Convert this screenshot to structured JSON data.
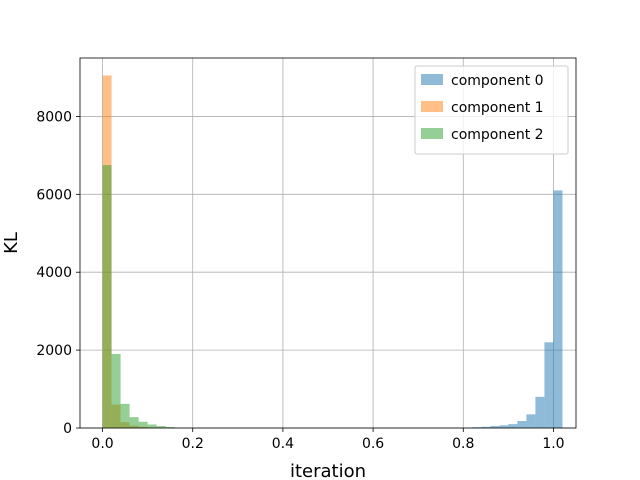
{
  "chart_data": {
    "type": "histogram",
    "title": "",
    "xlabel": "iteration",
    "ylabel": "KL",
    "xlim": [
      -0.05,
      1.05
    ],
    "ylim": [
      0,
      9500
    ],
    "xticks": [
      0.0,
      0.2,
      0.4,
      0.6,
      0.8,
      1.0
    ],
    "xtick_labels": [
      "0.0",
      "0.2",
      "0.4",
      "0.6",
      "0.8",
      "1.0"
    ],
    "yticks": [
      0,
      2000,
      4000,
      6000,
      8000
    ],
    "ytick_labels": [
      "0",
      "2000",
      "4000",
      "6000",
      "8000"
    ],
    "grid": true,
    "legend_position": "top-right",
    "bin_width": 0.02,
    "bins_start": 0.0,
    "series": [
      {
        "name": "component 0",
        "color": "#1f77b4",
        "opacity": 0.5,
        "values": [
          0,
          0,
          0,
          0,
          0,
          0,
          0,
          0,
          0,
          0,
          0,
          0,
          0,
          0,
          0,
          0,
          0,
          0,
          0,
          0,
          0,
          0,
          0,
          0,
          0,
          0,
          0,
          0,
          0,
          0,
          0,
          0,
          0,
          0,
          0,
          0,
          0,
          0,
          0,
          0,
          0,
          20,
          30,
          50,
          70,
          100,
          180,
          350,
          800,
          2200,
          6100
        ]
      },
      {
        "name": "component 1",
        "color": "#ff7f0e",
        "opacity": 0.5,
        "values": [
          9050,
          600,
          150,
          60,
          30,
          15,
          8,
          5
        ]
      },
      {
        "name": "component 2",
        "color": "#2ca02c",
        "opacity": 0.5,
        "values": [
          6750,
          1900,
          620,
          280,
          160,
          90,
          50,
          25
        ]
      }
    ]
  }
}
